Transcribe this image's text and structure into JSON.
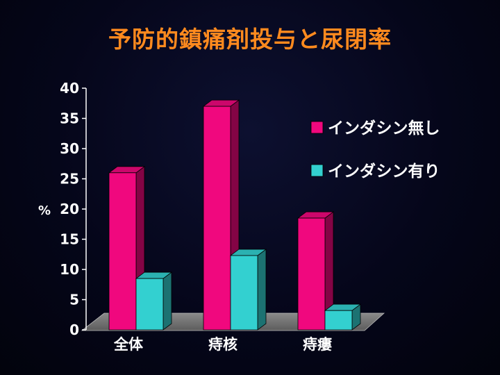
{
  "slide": {
    "title": "予防的鎮痛剤投与と尿閉率"
  },
  "chart_data": {
    "type": "bar",
    "title": "予防的鎮痛剤投与と尿閉率",
    "xlabel": "",
    "ylabel": "%",
    "ylim": [
      0,
      40
    ],
    "yticks": [
      0,
      5,
      10,
      15,
      20,
      25,
      30,
      35,
      40
    ],
    "categories": [
      "全体",
      "痔核",
      "痔瘻"
    ],
    "series": [
      {
        "name": "インダシン無し",
        "values": [
          26,
          37,
          18.5
        ],
        "color": "#f0087e"
      },
      {
        "name": "インダシン有り",
        "values": [
          8.5,
          12.3,
          3.2
        ],
        "color": "#33d0d0"
      }
    ],
    "legend_position": "right",
    "grid": false,
    "style": "3d"
  }
}
